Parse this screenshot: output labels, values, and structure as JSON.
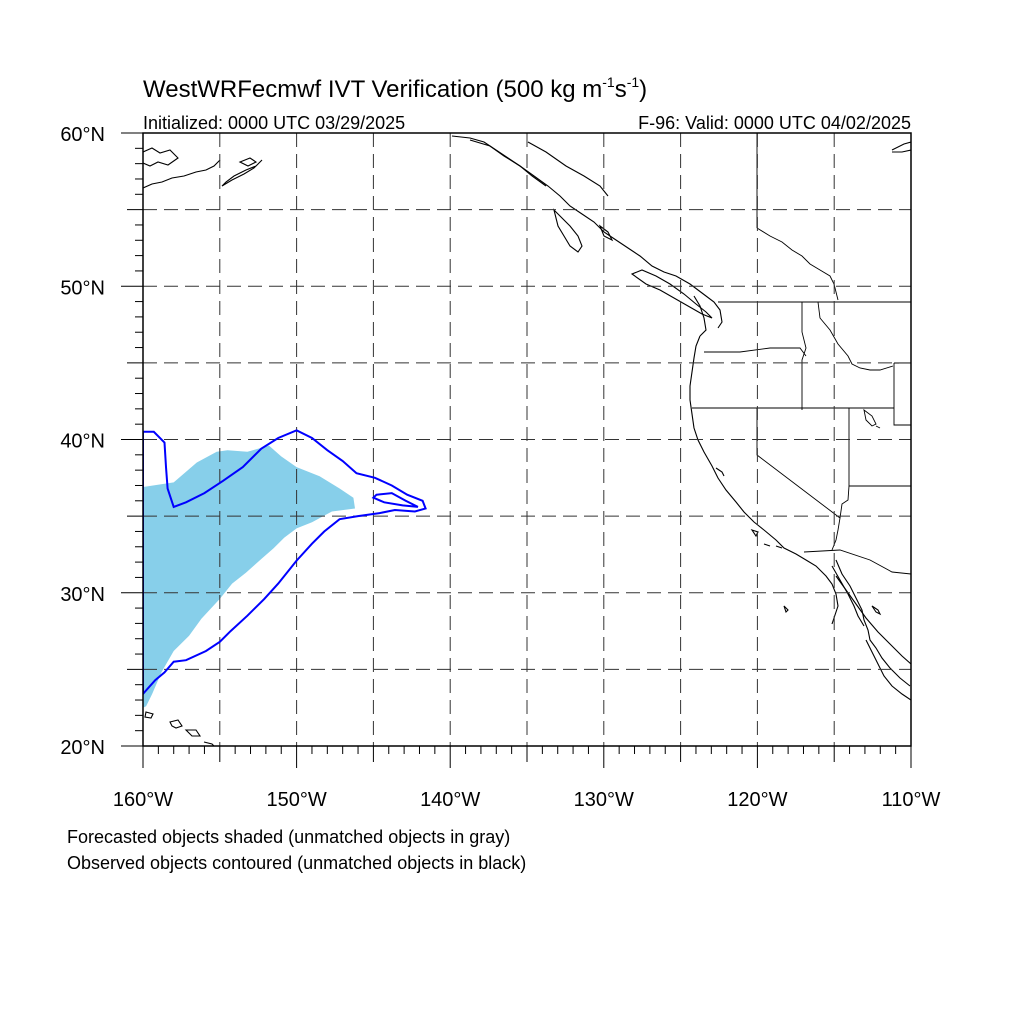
{
  "title": {
    "main": "WestWRFecmwf IVT Verification (500 kg m",
    "exp1": "-1",
    "mid": "s",
    "exp2": "-1",
    "close": ")"
  },
  "subtitle_left": "Initialized: 0000 UTC 03/29/2025",
  "subtitle_right": "F-96: Valid: 0000 UTC 04/02/2025",
  "map": {
    "lon_range": [
      -160,
      -110
    ],
    "lat_range": [
      20,
      60
    ],
    "gridlines": "dashed",
    "grid_lon_step": 5,
    "grid_lat_step": 5
  },
  "lon_ticks": [
    {
      "value": -160,
      "label": "160°W"
    },
    {
      "value": -150,
      "label": "150°W"
    },
    {
      "value": -140,
      "label": "140°W"
    },
    {
      "value": -130,
      "label": "130°W"
    },
    {
      "value": -120,
      "label": "120°W"
    },
    {
      "value": -110,
      "label": "110°W"
    }
  ],
  "lat_ticks": [
    {
      "value": 60,
      "label": "60°N"
    },
    {
      "value": 50,
      "label": "50°N"
    },
    {
      "value": 40,
      "label": "40°N"
    },
    {
      "value": 30,
      "label": "30°N"
    },
    {
      "value": 20,
      "label": "20°N"
    }
  ],
  "forecast_object": {
    "color": "#87cfea",
    "polygon": [
      [
        -160,
        36.9
      ],
      [
        -158,
        37.2
      ],
      [
        -156.5,
        38.5
      ],
      [
        -155.2,
        39.2
      ],
      [
        -154.5,
        39.3
      ],
      [
        -153.2,
        39.2
      ],
      [
        -151.8,
        39.6
      ],
      [
        -151,
        38.9
      ],
      [
        -150,
        38.2
      ],
      [
        -148.5,
        37.6
      ],
      [
        -147.2,
        36.8
      ],
      [
        -146.3,
        36.2
      ],
      [
        -146.2,
        35.5
      ],
      [
        -147.7,
        35.3
      ],
      [
        -149,
        34.6
      ],
      [
        -150,
        34.2
      ],
      [
        -150.8,
        33.6
      ],
      [
        -151.5,
        32.9
      ],
      [
        -152.3,
        32.2
      ],
      [
        -153.3,
        31.3
      ],
      [
        -154.2,
        30.6
      ],
      [
        -155,
        29.6
      ],
      [
        -156.2,
        28.3
      ],
      [
        -157,
        27.2
      ],
      [
        -158,
        26.2
      ],
      [
        -158.8,
        24.8
      ],
      [
        -159.4,
        23.4
      ],
      [
        -159.8,
        22.6
      ],
      [
        -160,
        22.5
      ]
    ]
  },
  "observed_object": {
    "color": "#0000ff",
    "outer": [
      [
        -160,
        40.5
      ],
      [
        -159.3,
        40.5
      ],
      [
        -158.6,
        39.8
      ],
      [
        -158.5,
        38.2
      ],
      [
        -158.4,
        36.8
      ],
      [
        -158,
        35.6
      ],
      [
        -157.2,
        35.9
      ],
      [
        -156,
        36.5
      ],
      [
        -154.8,
        37.3
      ],
      [
        -153.5,
        38.2
      ],
      [
        -152.3,
        39.4
      ],
      [
        -151.2,
        40.1
      ],
      [
        -150,
        40.6
      ],
      [
        -149,
        40.1
      ],
      [
        -148,
        39.3
      ],
      [
        -147,
        38.6
      ],
      [
        -146.1,
        37.8
      ],
      [
        -144.9,
        37.5
      ],
      [
        -143.8,
        37
      ],
      [
        -142.8,
        36.4
      ],
      [
        -141.8,
        36
      ],
      [
        -141.6,
        35.5
      ],
      [
        -142.3,
        35.3
      ],
      [
        -143.6,
        35.4
      ],
      [
        -144.6,
        35.2
      ],
      [
        -146,
        35
      ],
      [
        -147.2,
        34.8
      ],
      [
        -148.2,
        34
      ],
      [
        -149,
        33.2
      ],
      [
        -150,
        32.1
      ],
      [
        -151.2,
        30.6
      ],
      [
        -152.1,
        29.6
      ],
      [
        -153.2,
        28.5
      ],
      [
        -154.3,
        27.5
      ],
      [
        -155,
        26.8
      ],
      [
        -155.9,
        26.2
      ],
      [
        -157.2,
        25.6
      ],
      [
        -158,
        25.5
      ],
      [
        -158.6,
        24.8
      ],
      [
        -159.2,
        24.3
      ],
      [
        -160,
        23.4
      ]
    ],
    "inner": [
      [
        -144.8,
        36.4
      ],
      [
        -143.8,
        36.5
      ],
      [
        -142.9,
        36
      ],
      [
        -142.1,
        35.6
      ],
      [
        -143.1,
        35.7
      ],
      [
        -144.3,
        35.9
      ],
      [
        -145,
        36.2
      ],
      [
        -144.8,
        36.4
      ]
    ]
  },
  "captions": [
    "Forecasted objects shaded (unmatched objects in gray)",
    "Observed objects contoured (unmatched objects in black)"
  ]
}
